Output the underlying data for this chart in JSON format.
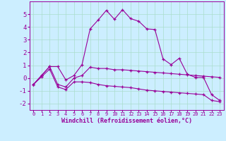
{
  "xlabel": "Windchill (Refroidissement éolien,°C)",
  "bg_color": "#cceeff",
  "line_color": "#990099",
  "grid_color": "#aaddcc",
  "ylim": [
    -2.5,
    6.0
  ],
  "xlim": [
    -0.5,
    23.5
  ],
  "yticks": [
    -2,
    -1,
    0,
    1,
    2,
    3,
    4,
    5
  ],
  "xticks": [
    0,
    1,
    2,
    3,
    4,
    5,
    6,
    7,
    8,
    9,
    10,
    11,
    12,
    13,
    14,
    15,
    16,
    17,
    18,
    19,
    20,
    21,
    22,
    23
  ],
  "line1_x": [
    0,
    1,
    2,
    3,
    4,
    5,
    6,
    7,
    8,
    9,
    10,
    11,
    12,
    13,
    14,
    15,
    16,
    17,
    18,
    19,
    20,
    21,
    22,
    23
  ],
  "line1_y": [
    -0.5,
    0.2,
    0.9,
    0.9,
    -0.15,
    0.2,
    1.05,
    3.85,
    4.55,
    5.3,
    4.6,
    5.35,
    4.65,
    4.45,
    3.85,
    3.8,
    1.5,
    1.05,
    1.55,
    0.3,
    0.05,
    0.05,
    -1.3,
    -1.75
  ],
  "line2_x": [
    0,
    1,
    2,
    3,
    4,
    5,
    6,
    7,
    8,
    9,
    10,
    11,
    12,
    13,
    14,
    15,
    16,
    17,
    18,
    19,
    20,
    21,
    22,
    23
  ],
  "line2_y": [
    -0.5,
    0.2,
    0.9,
    -0.5,
    -0.7,
    0.0,
    0.2,
    0.85,
    0.75,
    0.75,
    0.65,
    0.65,
    0.6,
    0.55,
    0.5,
    0.45,
    0.4,
    0.35,
    0.3,
    0.25,
    0.2,
    0.15,
    0.1,
    0.05
  ],
  "line3_x": [
    0,
    1,
    2,
    3,
    4,
    5,
    6,
    7,
    8,
    9,
    10,
    11,
    12,
    13,
    14,
    15,
    16,
    17,
    18,
    19,
    20,
    21,
    22,
    23
  ],
  "line3_y": [
    -0.5,
    0.1,
    0.7,
    -0.7,
    -0.9,
    -0.3,
    -0.3,
    -0.35,
    -0.5,
    -0.6,
    -0.65,
    -0.7,
    -0.75,
    -0.85,
    -0.95,
    -1.0,
    -1.05,
    -1.1,
    -1.15,
    -1.2,
    -1.25,
    -1.3,
    -1.75,
    -1.85
  ],
  "xlabel_fontsize": 6.0,
  "ytick_fontsize": 6.5,
  "xtick_fontsize": 5.0
}
